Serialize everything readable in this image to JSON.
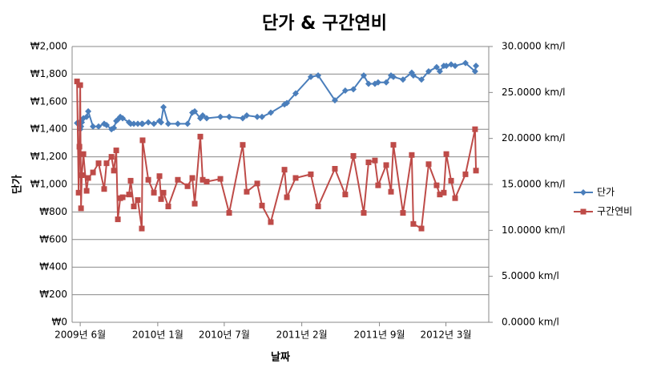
{
  "chart_data": {
    "type": "line",
    "title": "단가 & 구간연비",
    "y_label": "단가",
    "x_label": "날짜",
    "x": [
      2009.393,
      2009.405,
      2009.411,
      2009.417,
      2009.423,
      2009.429,
      2009.441,
      2009.465,
      2009.477,
      2009.513,
      2009.555,
      2009.597,
      2009.615,
      2009.652,
      2009.67,
      2009.688,
      2009.7,
      2009.718,
      2009.736,
      2009.784,
      2009.796,
      2009.82,
      2009.85,
      2009.88,
      2009.886,
      2009.929,
      2009.971,
      2010.013,
      2010.025,
      2010.043,
      2010.079,
      2010.151,
      2010.224,
      2010.26,
      2010.278,
      2010.32,
      2010.338,
      2010.368,
      2010.471,
      2010.537,
      2010.639,
      2010.669,
      2010.748,
      2010.784,
      2010.85,
      2010.953,
      2010.971,
      2011.037,
      2011.151,
      2011.206,
      2011.332,
      2011.41,
      2011.471,
      2011.549,
      2011.585,
      2011.633,
      2011.657,
      2011.718,
      2011.754,
      2011.772,
      2011.844,
      2011.91,
      2011.922,
      2011.983,
      2012.037,
      2012.097,
      2012.121,
      2012.151,
      2012.17,
      2012.206,
      2012.236,
      2012.314,
      2012.386,
      2012.393
    ],
    "series": [
      {
        "name": "단가",
        "color": "#4a7ebb",
        "marker": "diamond",
        "values": [
          1445,
          1440,
          1450,
          1400,
          1420,
          1450,
          1480,
          1490,
          1530,
          1420,
          1420,
          1440,
          1430,
          1400,
          1410,
          1460,
          1470,
          1490,
          1480,
          1450,
          1440,
          1440,
          1440,
          1440,
          1440,
          1450,
          1440,
          1460,
          1450,
          1560,
          1440,
          1440,
          1440,
          1520,
          1530,
          1480,
          1500,
          1480,
          1490,
          1490,
          1480,
          1500,
          1490,
          1490,
          1520,
          1580,
          1590,
          1660,
          1780,
          1790,
          1610,
          1680,
          1690,
          1790,
          1730,
          1730,
          1740,
          1740,
          1790,
          1780,
          1760,
          1810,
          1790,
          1760,
          1820,
          1850,
          1820,
          1860,
          1860,
          1870,
          1860,
          1880,
          1820,
          1860
        ]
      },
      {
        "name": "구간연비",
        "color": "#be4b48",
        "marker": "square",
        "axis": "y2",
        "values": [
          26.2,
          14.1,
          19.1,
          25.8,
          12.4,
          16.0,
          18.3,
          14.3,
          15.7,
          16.3,
          17.3,
          14.5,
          17.3,
          18.0,
          16.5,
          18.7,
          11.2,
          13.5,
          13.6,
          13.9,
          15.4,
          12.6,
          13.3,
          10.2,
          19.8,
          15.5,
          14.1,
          15.9,
          13.4,
          14.1,
          12.6,
          15.5,
          14.8,
          15.7,
          12.9,
          20.2,
          15.5,
          15.3,
          15.6,
          11.9,
          19.3,
          14.2,
          15.1,
          12.7,
          10.9,
          16.6,
          13.6,
          15.7,
          16.1,
          12.6,
          16.7,
          13.9,
          18.1,
          11.9,
          17.4,
          17.6,
          14.9,
          17.1,
          14.2,
          19.3,
          11.9,
          18.2,
          10.7,
          10.2,
          17.2,
          14.9,
          13.9,
          14.1,
          18.3,
          15.4,
          13.5,
          16.1,
          21.0,
          16.5
        ]
      }
    ],
    "xlim": [
      2009.356,
      2012.489
    ],
    "xticks": [
      {
        "value": 2009.417,
        "label": "2009년 6월"
      },
      {
        "value": 2010.0,
        "label": "2010년 1월"
      },
      {
        "value": 2010.5,
        "label": "2010년 7월"
      },
      {
        "value": 2011.083,
        "label": "2011년 2월"
      },
      {
        "value": 2011.667,
        "label": "2011년 9월"
      },
      {
        "value": 2012.167,
        "label": "2012년 3월"
      }
    ],
    "ylim": [
      0,
      2000
    ],
    "yticks": [
      {
        "value": 0,
        "label": "₩0"
      },
      {
        "value": 200,
        "label": "₩200"
      },
      {
        "value": 400,
        "label": "₩400"
      },
      {
        "value": 600,
        "label": "₩600"
      },
      {
        "value": 800,
        "label": "₩800"
      },
      {
        "value": 1000,
        "label": "₩1,000"
      },
      {
        "value": 1200,
        "label": "₩1,200"
      },
      {
        "value": 1400,
        "label": "₩1,400"
      },
      {
        "value": 1600,
        "label": "₩1,600"
      },
      {
        "value": 1800,
        "label": "₩1,800"
      },
      {
        "value": 2000,
        "label": "₩2,000"
      }
    ],
    "y2lim": [
      0,
      30
    ],
    "y2ticks": [
      {
        "value": 0,
        "label": "0.0000 km/l"
      },
      {
        "value": 5,
        "label": "5.0000 km/l"
      },
      {
        "value": 10,
        "label": "10.0000 km/l"
      },
      {
        "value": 15,
        "label": "15.0000 km/l"
      },
      {
        "value": 20,
        "label": "20.0000 km/l"
      },
      {
        "value": 25,
        "label": "25.0000 km/l"
      },
      {
        "value": 30,
        "label": "30.0000 km/l"
      }
    ],
    "grid": true,
    "legend": "right"
  }
}
